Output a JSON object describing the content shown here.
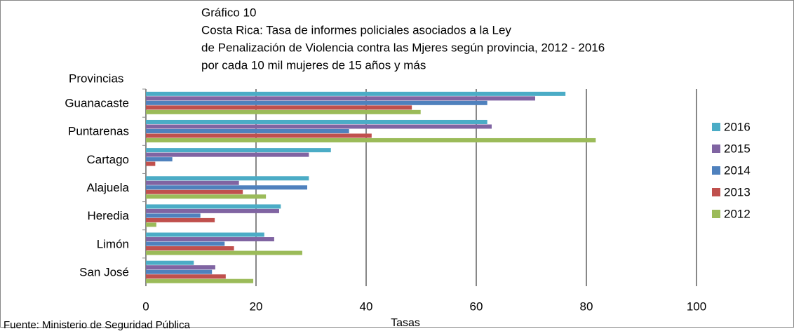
{
  "chart_data": {
    "type": "barh",
    "title": [
      "Gráfico 10",
      "Costa Rica: Tasa de informes policiales asociados a la Ley",
      "de Penalización de Violencia contra las Mjeres según provincia, 2012 - 2016",
      "por cada 10 mil mujeres de 15 años y más"
    ],
    "y_label": "Provincias",
    "x_label": "Tasas",
    "source": "Fuente: Ministerio de Seguridad Pública",
    "categories": [
      "Guanacaste",
      "Puntarenas",
      "Cartago",
      "Alajuela",
      "Heredia",
      "Limón",
      "San José"
    ],
    "series": [
      {
        "name": "2016",
        "color": "#4bacc6",
        "values": [
          76.2,
          62.0,
          33.6,
          29.6,
          24.5,
          21.5,
          8.7
        ]
      },
      {
        "name": "2015",
        "color": "#8064a2",
        "values": [
          70.7,
          62.8,
          29.6,
          16.9,
          24.2,
          23.3,
          12.6
        ]
      },
      {
        "name": "2014",
        "color": "#4f81bd",
        "values": [
          62.0,
          36.9,
          4.8,
          29.3,
          9.9,
          14.3,
          12.0
        ]
      },
      {
        "name": "2013",
        "color": "#c0504d",
        "values": [
          48.3,
          41.0,
          1.7,
          17.6,
          12.5,
          16.0,
          14.5
        ]
      },
      {
        "name": "2012",
        "color": "#9bbb59",
        "values": [
          49.9,
          81.7,
          0,
          21.8,
          1.9,
          28.4,
          19.5
        ]
      }
    ],
    "xlim": [
      0,
      100
    ],
    "xticks": [
      0,
      20,
      40,
      60,
      80,
      100
    ],
    "grid": true,
    "legend": "right"
  }
}
